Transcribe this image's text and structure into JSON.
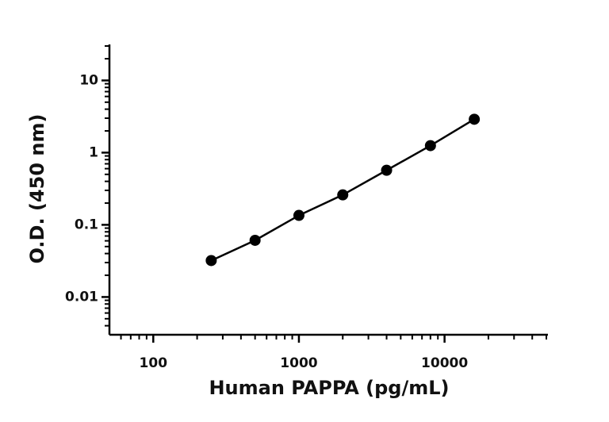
{
  "chart_data": {
    "type": "scatter-line",
    "x_label": "Human PAPPA (pg/mL)",
    "y_label": "O.D. (450 nm)",
    "x": [
      250,
      500,
      1000,
      2000,
      4000,
      8000,
      16000
    ],
    "series": [
      {
        "color": "#000000",
        "values": [
          0.032,
          0.061,
          0.135,
          0.26,
          0.57,
          1.25,
          2.9
        ]
      }
    ],
    "xlog": true,
    "ylog": true,
    "xlim": [
      50,
      50000
    ],
    "ylim": [
      0.003,
      30
    ],
    "xticks": [
      100,
      1000,
      10000
    ],
    "yticks": [
      0.01,
      0.1,
      1,
      10
    ],
    "xminorticks": [
      60,
      70,
      80,
      90,
      200,
      300,
      400,
      500,
      600,
      700,
      800,
      900,
      2000,
      3000,
      4000,
      5000,
      6000,
      7000,
      8000,
      9000,
      20000,
      30000,
      40000,
      50000
    ],
    "yminorticks": [
      0.004,
      0.005,
      0.006,
      0.007,
      0.008,
      0.009,
      0.02,
      0.03,
      0.04,
      0.05,
      0.06,
      0.07,
      0.08,
      0.09,
      0.2,
      0.3,
      0.4,
      0.5,
      0.6,
      0.7,
      0.8,
      0.9,
      2,
      3,
      4,
      5,
      6,
      7,
      8,
      9,
      20,
      30
    ]
  }
}
